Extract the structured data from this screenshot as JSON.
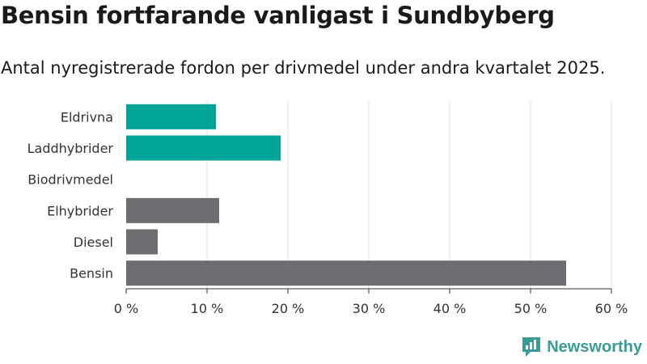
{
  "header": {
    "title": "Bensin fortfarande vanligast i Sundbyberg",
    "subtitle": "Antal nyregistrerade fordon per drivmedel under andra kvartalet 2025."
  },
  "brand": {
    "name": "Newsworthy",
    "icon": "newsworthy-logo-icon",
    "color": "#3a9c97"
  },
  "chart_data": {
    "type": "bar",
    "orientation": "horizontal",
    "categories": [
      "Eldrivna",
      "Laddhybrider",
      "Biodrivmedel",
      "Elhybrider",
      "Diesel",
      "Bensin"
    ],
    "values": [
      11.1,
      19.1,
      0,
      11.5,
      3.9,
      54.4
    ],
    "colors": [
      "#00a499",
      "#00a499",
      "#00a499",
      "#6d6c71",
      "#6d6c71",
      "#6d6c71"
    ],
    "xlim": [
      0,
      60
    ],
    "xticks": [
      0,
      10,
      20,
      30,
      40,
      50,
      60
    ],
    "tick_labels": [
      "0 %",
      "10 %",
      "20 %",
      "30 %",
      "40 %",
      "50 %",
      "60 %"
    ],
    "grid": true,
    "xlabel": "",
    "ylabel": ""
  }
}
